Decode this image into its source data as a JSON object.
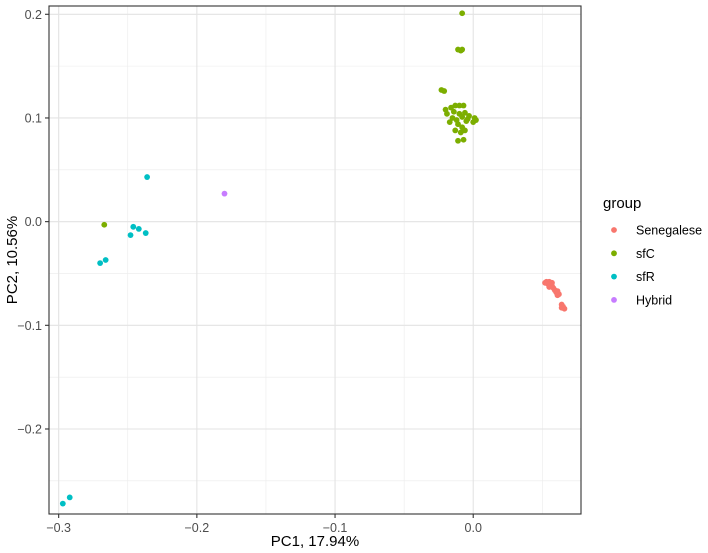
{
  "chart_data": {
    "type": "scatter",
    "xlabel": "PC1, 17.94%",
    "ylabel": "PC2, 10.56%",
    "xlim": [
      -0.307,
      0.078
    ],
    "ylim": [
      -0.282,
      0.208
    ],
    "x_ticks": [
      -0.3,
      -0.2,
      -0.1,
      0.0
    ],
    "x_tick_labels": [
      "−0.3",
      "−0.2",
      "−0.1",
      "0.0"
    ],
    "y_ticks": [
      -0.2,
      -0.1,
      0.0,
      0.1,
      0.2
    ],
    "y_tick_labels": [
      "−0.2",
      "−0.1",
      "0.0",
      "0.1",
      "0.2"
    ],
    "grid": true,
    "legend": {
      "title": "group",
      "placement": "right"
    },
    "series": [
      {
        "name": "Senegalese",
        "color": "#F8766D",
        "points": [
          [
            0.053,
            -0.058
          ],
          [
            0.055,
            -0.058
          ],
          [
            0.054,
            -0.06
          ],
          [
            0.056,
            -0.061
          ],
          [
            0.055,
            -0.063
          ],
          [
            0.057,
            -0.062
          ],
          [
            0.058,
            -0.064
          ],
          [
            0.059,
            -0.066
          ],
          [
            0.06,
            -0.068
          ],
          [
            0.061,
            -0.067
          ],
          [
            0.062,
            -0.07
          ],
          [
            0.061,
            -0.071
          ],
          [
            0.064,
            -0.08
          ],
          [
            0.065,
            -0.082
          ],
          [
            0.066,
            -0.084
          ],
          [
            0.064,
            -0.083
          ],
          [
            0.052,
            -0.059
          ],
          [
            0.057,
            -0.059
          ]
        ]
      },
      {
        "name": "sfC",
        "color": "#7CAE00",
        "points": [
          [
            -0.008,
            0.201
          ],
          [
            -0.011,
            0.166
          ],
          [
            -0.008,
            0.166
          ],
          [
            -0.009,
            0.165
          ],
          [
            -0.023,
            0.127
          ],
          [
            -0.021,
            0.126
          ],
          [
            -0.016,
            0.11
          ],
          [
            -0.013,
            0.112
          ],
          [
            -0.01,
            0.112
          ],
          [
            -0.007,
            0.112
          ],
          [
            -0.02,
            0.108
          ],
          [
            -0.019,
            0.104
          ],
          [
            -0.014,
            0.106
          ],
          [
            -0.01,
            0.104
          ],
          [
            -0.006,
            0.105
          ],
          [
            -0.003,
            0.102
          ],
          [
            0.001,
            0.1
          ],
          [
            0.002,
            0.098
          ],
          [
            0.0,
            0.096
          ],
          [
            -0.004,
            0.099
          ],
          [
            -0.008,
            0.101
          ],
          [
            -0.012,
            0.098
          ],
          [
            -0.015,
            0.1
          ],
          [
            -0.011,
            0.094
          ],
          [
            -0.008,
            0.091
          ],
          [
            -0.013,
            0.088
          ],
          [
            -0.009,
            0.086
          ],
          [
            -0.006,
            0.088
          ],
          [
            -0.011,
            0.078
          ],
          [
            -0.007,
            0.079
          ],
          [
            -0.005,
            0.097
          ],
          [
            -0.017,
            0.096
          ],
          [
            -0.267,
            -0.003
          ]
        ]
      },
      {
        "name": "sfR",
        "color": "#00BFC4",
        "points": [
          [
            -0.236,
            0.043
          ],
          [
            -0.246,
            -0.005
          ],
          [
            -0.242,
            -0.007
          ],
          [
            -0.237,
            -0.011
          ],
          [
            -0.248,
            -0.013
          ],
          [
            -0.266,
            -0.037
          ],
          [
            -0.27,
            -0.04
          ],
          [
            -0.292,
            -0.266
          ],
          [
            -0.297,
            -0.272
          ]
        ]
      },
      {
        "name": "Hybrid",
        "color": "#C77CFF",
        "points": [
          [
            -0.18,
            0.027
          ]
        ]
      }
    ]
  }
}
